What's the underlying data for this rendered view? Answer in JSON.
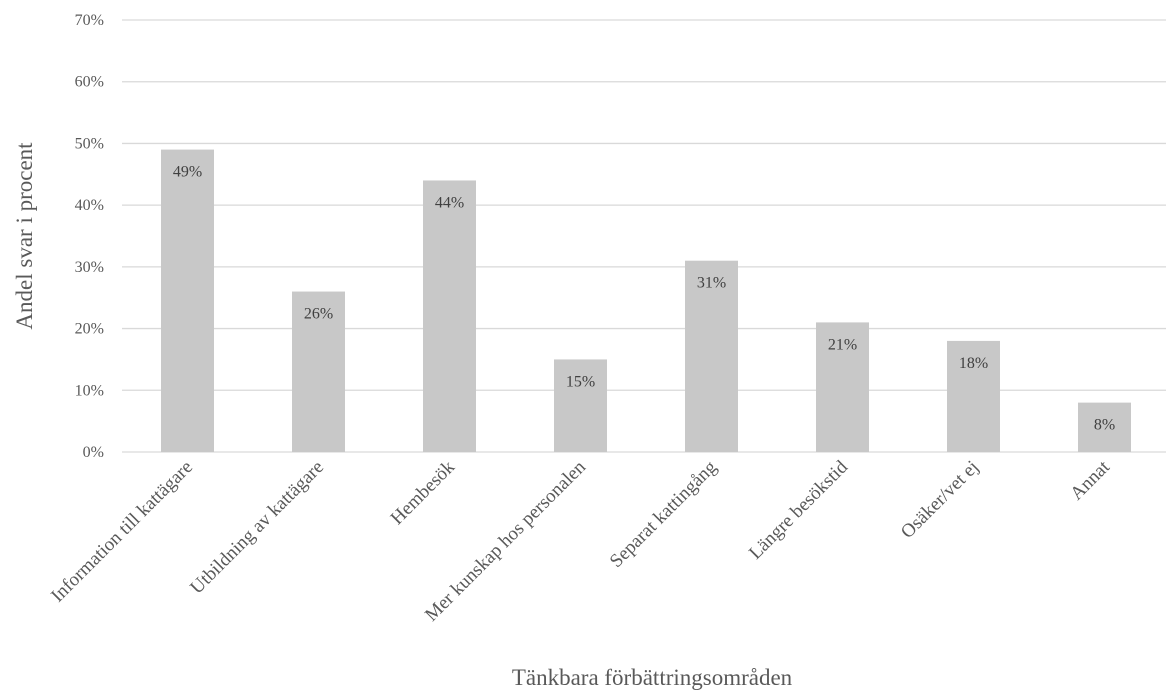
{
  "chart_data": {
    "type": "bar",
    "title": "",
    "xlabel": "Tänkbara förbättringsområden",
    "ylabel": "Andel svar i procent",
    "ylim": [
      0,
      70
    ],
    "yticks": [
      0,
      10,
      20,
      30,
      40,
      50,
      60,
      70
    ],
    "ytick_suffix": "%",
    "grid": true,
    "legend": "none",
    "bar_color": "#c8c8c8",
    "categories": [
      "Information till kattägare",
      "Utbildning av kattägare",
      "Hembesök",
      "Mer kunskap hos personalen",
      "Separat kattingång",
      "Längre besökstid",
      "Osäker/vet ej",
      "Annat"
    ],
    "values": [
      49,
      26,
      44,
      15,
      31,
      21,
      18,
      8
    ],
    "data_labels": [
      "49%",
      "26%",
      "44%",
      "15%",
      "31%",
      "21%",
      "18%",
      "8%"
    ]
  }
}
